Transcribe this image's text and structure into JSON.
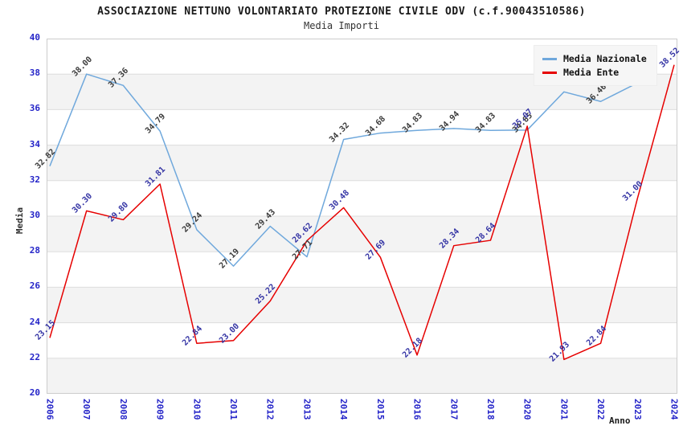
{
  "title": "ASSOCIAZIONE NETTUNO VOLONTARIATO PROTEZIONE CIVILE ODV (c.f.90043510586)",
  "subtitle": "Media Importi",
  "axes": {
    "y_label": "Media",
    "x_label": "Anno",
    "y_ticks": [
      40,
      38,
      36,
      34,
      32,
      30,
      28,
      26,
      24,
      22,
      20
    ],
    "x_ticks": [
      "2006",
      "2007",
      "2008",
      "2009",
      "2010",
      "2011",
      "2012",
      "2013",
      "2014",
      "2015",
      "2016",
      "2017",
      "2018",
      "2020",
      "2021",
      "2022",
      "2023",
      "2024"
    ]
  },
  "legend": {
    "items": [
      {
        "label": "Media Nazionale",
        "color": "#6fa8dc"
      },
      {
        "label": "Media Ente",
        "color": "#e60000"
      }
    ]
  },
  "colors": {
    "nazionale_line": "#6fa8dc",
    "ente_line": "#e60000",
    "nazionale_label": "#3b3b3b",
    "ente_label": "#3434a4",
    "tick_label": "#2424c8",
    "grid_line": "#dddddd",
    "band_gray": "#f3f3f3",
    "plot_border": "#cccccc"
  },
  "chart_data": {
    "type": "line",
    "title": "Media Importi",
    "xlabel": "Anno",
    "ylabel": "Media",
    "ylim": [
      20,
      40
    ],
    "grid": true,
    "legend_position": "top-right",
    "x": [
      "2006",
      "2007",
      "2008",
      "2009",
      "2010",
      "2011",
      "2012",
      "2013",
      "2014",
      "2015",
      "2016",
      "2017",
      "2018",
      "2020",
      "2021",
      "2022",
      "2023",
      "2024"
    ],
    "series": [
      {
        "name": "Media Nazionale",
        "color": "#6fa8dc",
        "label_color": "#3b3b3b",
        "values": [
          32.82,
          38.0,
          37.36,
          34.79,
          29.24,
          27.19,
          29.43,
          27.71,
          34.32,
          34.68,
          34.83,
          34.94,
          34.83,
          34.85,
          37.0,
          36.46,
          37.5,
          null
        ],
        "labels": [
          "32.82",
          "38.00",
          "37.36",
          "34.79",
          "29.24",
          "27.19",
          "29.43",
          "27.71",
          "34.32",
          "34.68",
          "34.83",
          "34.94",
          "34.83",
          "34.85",
          "",
          "36.46",
          "",
          ""
        ]
      },
      {
        "name": "Media Ente",
        "color": "#e60000",
        "label_color": "#3434a4",
        "values": [
          23.15,
          30.3,
          29.8,
          31.81,
          22.84,
          23.0,
          25.22,
          28.62,
          30.48,
          27.69,
          22.18,
          28.34,
          28.64,
          35.07,
          21.93,
          22.84,
          31.0,
          38.52
        ],
        "labels": [
          "23.15",
          "30.30",
          "29.80",
          "31.81",
          "22.84",
          "23.00",
          "25.22",
          "28.62",
          "30.48",
          "27.69",
          "22.18",
          "28.34",
          "28.64",
          "35.07",
          "21.93",
          "22.84",
          "31.00",
          "38.52"
        ]
      }
    ]
  }
}
